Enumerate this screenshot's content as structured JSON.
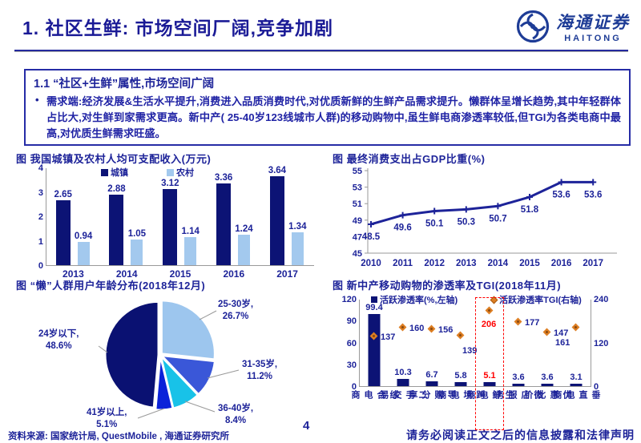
{
  "header": {
    "title": "1. 社区生鲜: 市场空间厂阔,竞争加剧",
    "logo_cn": "海通证券",
    "logo_en": "HAITONG"
  },
  "summary_box": {
    "heading": "1.1 “社区+生鲜”属性,市场空间广阔",
    "bullet": "需求端:经济发展&生活水平提升,消费进入品质消费时代,对优质新鲜的生鲜产品需求提升。懒群体呈增长趋势,其中年轻群体占比大,对生鲜到家需求更高。新中产( 25-40岁123线城市人群)的移动购物中,虽生鲜电商渗透率较低,但TGI为各类电商中最高,对优质生鲜需求旺盛。"
  },
  "footer": {
    "source": "资料来源: 国家统计局, QuestMobile , 海通证券研究所",
    "page": "4",
    "disclaimer": "请务必阅读正文之后的信息披露和法律声明"
  },
  "chart_data": [
    {
      "type": "bar",
      "title": "图  我国城镇及农村人均可支配收入(万元)",
      "categories": [
        "2013",
        "2014",
        "2015",
        "2016",
        "2017"
      ],
      "series": [
        {
          "name": "城镇",
          "color": "#0c1375",
          "values": [
            2.65,
            2.88,
            3.12,
            3.36,
            3.64
          ]
        },
        {
          "name": "农村",
          "color": "#a3c9ee",
          "values": [
            0.94,
            1.05,
            1.14,
            1.24,
            1.34
          ]
        }
      ],
      "ylim": [
        0,
        4
      ],
      "yticks": [
        0,
        1,
        2,
        3,
        4
      ],
      "legend_position": "top",
      "grid": false
    },
    {
      "type": "line",
      "title": "图  最终消费支出占GDP比重(%)",
      "x": [
        "2010",
        "2011",
        "2012",
        "2013",
        "2014",
        "2015",
        "2016",
        "2017"
      ],
      "values": [
        48.5,
        49.6,
        50.1,
        50.3,
        50.7,
        51.8,
        53.6,
        53.6
      ],
      "ylim": [
        45,
        55
      ],
      "yticks": [
        45,
        47,
        49,
        51,
        53,
        55
      ],
      "color": "#1d2399",
      "grid": false
    },
    {
      "type": "pie",
      "title": "图  “懒”人群用户年龄分布(2018年12月)",
      "start_angle": "top",
      "direction": "clockwise",
      "slices": [
        {
          "label": "25-30岁",
          "pct": 26.7,
          "color": "#9dc6ee"
        },
        {
          "label": "31-35岁",
          "pct": 11.2,
          "color": "#3a57d8"
        },
        {
          "label": "36-40岁",
          "pct": 8.4,
          "color": "#18c2e8"
        },
        {
          "label": "41岁以上",
          "pct": 5.1,
          "color": "#0b22d9"
        },
        {
          "label": "24岁以下",
          "pct": 48.6,
          "color": "#0a1172"
        }
      ]
    },
    {
      "type": "bar",
      "title": "图  新中产移动购物的渗透率及TGI(2018年11月)",
      "categories": [
        "综合电商",
        "二手交易",
        "导购分享",
        "跨境电商",
        "生鲜电商",
        "微店服务",
        "优惠比价",
        "垂直电商"
      ],
      "series": [
        {
          "name": "活跃渗透率(%,左轴)",
          "type": "bar",
          "color": "#0c1375",
          "values": [
            99.4,
            10.3,
            6.7,
            5.8,
            5.1,
            3.6,
            3.6,
            3.1
          ]
        },
        {
          "name": "活跃渗透率TGI(右轴)",
          "type": "scatter",
          "color": "#dd7e22",
          "values": [
            137,
            160,
            156,
            139,
            206,
            177,
            147,
            161
          ]
        }
      ],
      "left_ylim": [
        0,
        120
      ],
      "left_yticks": [
        0,
        30,
        60,
        90,
        120
      ],
      "right_ylim": [
        0,
        240
      ],
      "right_yticks": [
        0,
        120,
        240
      ],
      "highlight_category": "生鲜电商",
      "highlight_color": "#ff0000",
      "tgi_label_pos": [
        "right",
        "right",
        "right",
        "below-right",
        "below",
        "right",
        "right",
        "below-left"
      ],
      "grid": false
    }
  ]
}
